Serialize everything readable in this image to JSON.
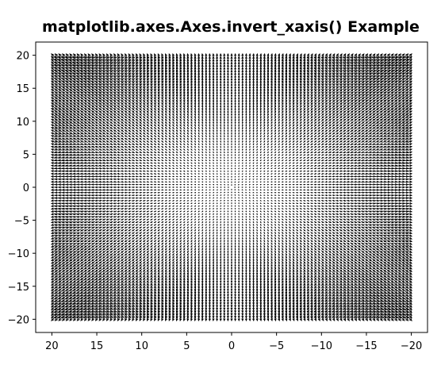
{
  "chart_data": {
    "type": "quiver",
    "title": "matplotlib.axes.Axes.invert_xaxis() Example",
    "xlabel": "",
    "ylabel": "",
    "x_inverted": true,
    "xlim": [
      21.8,
      -21.8
    ],
    "ylim": [
      -22,
      22
    ],
    "x_ticks": [
      20,
      15,
      10,
      5,
      0,
      -5,
      -10,
      -15,
      -20
    ],
    "x_tick_labels": [
      "20",
      "15",
      "10",
      "5",
      "0",
      "−5",
      "−10",
      "−15",
      "−20"
    ],
    "y_ticks": [
      20,
      15,
      10,
      5,
      0,
      -5,
      -10,
      -15,
      -20
    ],
    "y_tick_labels": [
      "20",
      "15",
      "10",
      "5",
      "0",
      "−5",
      "−10",
      "−15",
      "−20"
    ],
    "grid": {
      "x_start": -19.6,
      "x_end": 19.6,
      "y_start": -19.6,
      "y_end": 19.6,
      "step": 0.4
    },
    "vector_field": {
      "u": "x",
      "v": "y"
    },
    "arrow_color": "#000000",
    "grid_lines": false,
    "legend": "none"
  }
}
